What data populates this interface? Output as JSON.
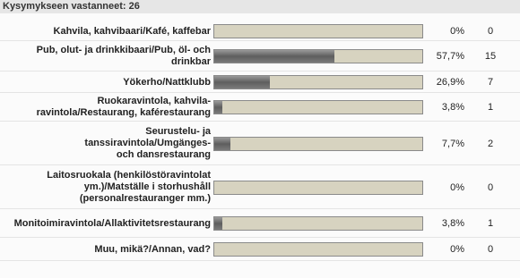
{
  "chart_data": {
    "type": "bar",
    "title": "Kysymykseen vastanneet: 26",
    "categories": [
      "Kahvila, kahvibaari/Kafé, kaffebar",
      "Pub, olut- ja drinkkibaari/Pub, öl- och drinkbar",
      "Yökerho/Nattklubb",
      "Ruokaravintola, kahvila-ravintola/Restaurang, kaférestaurang",
      "Seurustelu- ja tanssiravintola/Umgänges- och dansrestaurang",
      "Laitosruokala (henkilöstöravintolat ym.)/Matställe i storhushåll (personalrestauranger mm.)",
      "Monitoimiravintola/Allaktivitetsrestaurang",
      "Muu, mikä?/Annan, vad?"
    ],
    "values": [
      0,
      57.7,
      26.9,
      3.8,
      7.7,
      0,
      3.8,
      0
    ],
    "value_labels": [
      "0%",
      "57,7%",
      "26,9%",
      "3,8%",
      "7,7%",
      "0%",
      "3,8%",
      "0%"
    ],
    "counts": [
      0,
      15,
      7,
      1,
      2,
      0,
      1,
      0
    ],
    "xlim": [
      0,
      100
    ]
  }
}
